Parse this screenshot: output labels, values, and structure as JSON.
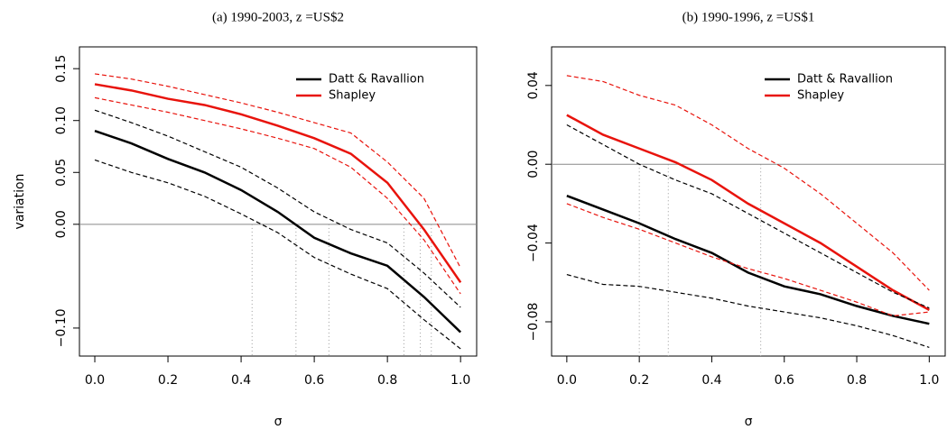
{
  "chart_data": [
    {
      "type": "line",
      "title": "(a) 1990-2003, z =US$2",
      "xlabel": "σ",
      "ylabel": "variation",
      "xlim": [
        -0.042,
        1.044
      ],
      "ylim": [
        -0.127,
        0.171
      ],
      "xticks": [
        {
          "value": 0,
          "label": "0.0"
        },
        0.2,
        0.4,
        0.6,
        0.8,
        {
          "value": 1,
          "label": "1.0"
        }
      ],
      "yticks": [
        {
          "value": -0.1,
          "label": "−0.10"
        },
        {
          "value": 0,
          "label": "0.00"
        },
        0.05,
        {
          "value": 0.1,
          "label": "0.10"
        },
        0.15
      ],
      "hline": 0,
      "vlines": [
        0.43,
        0.55,
        0.64,
        0.845,
        0.89,
        0.92
      ],
      "legend": "topright",
      "x": [
        0,
        0.1,
        0.2,
        0.3,
        0.4,
        0.5,
        0.6,
        0.7,
        0.8,
        0.9,
        1
      ],
      "series": [
        {
          "name": "Datt & Ravallion",
          "color": "#000000",
          "values": [
            0.09,
            0.078,
            0.063,
            0.05,
            0.033,
            0.012,
            -0.013,
            -0.028,
            -0.04,
            -0.07,
            -0.104
          ]
        },
        {
          "name": "Shapley",
          "color": "#e8130c",
          "values": [
            0.135,
            0.129,
            0.121,
            0.115,
            0.106,
            0.095,
            0.083,
            0.068,
            0.04,
            -0.005,
            -0.056
          ]
        },
        {
          "color": "#000000",
          "dash": true,
          "values": [
            0.11,
            0.098,
            0.085,
            0.07,
            0.055,
            0.035,
            0.012,
            -0.005,
            -0.018,
            -0.047,
            -0.08
          ]
        },
        {
          "color": "#000000",
          "dash": true,
          "values": [
            0.062,
            0.05,
            0.04,
            0.027,
            0.01,
            -0.008,
            -0.032,
            -0.048,
            -0.062,
            -0.092,
            -0.12
          ]
        },
        {
          "color": "#e8130c",
          "dash": true,
          "values": [
            0.145,
            0.14,
            0.133,
            0.125,
            0.117,
            0.108,
            0.098,
            0.088,
            0.06,
            0.025,
            -0.042
          ]
        },
        {
          "color": "#e8130c",
          "dash": true,
          "values": [
            0.122,
            0.115,
            0.108,
            0.1,
            0.092,
            0.083,
            0.073,
            0.055,
            0.025,
            -0.015,
            -0.067
          ]
        }
      ]
    },
    {
      "type": "line",
      "title": "(b) 1990-1996, z =US$1",
      "xlabel": "σ",
      "xlim": [
        -0.042,
        1.044
      ],
      "ylim": [
        -0.0974,
        0.0596
      ],
      "xticks": [
        {
          "value": 0,
          "label": "0.0"
        },
        0.2,
        0.4,
        0.6,
        0.8,
        {
          "value": 1,
          "label": "1.0"
        }
      ],
      "yticks": [
        {
          "value": -0.08,
          "label": "−0.08"
        },
        {
          "value": -0.04,
          "label": "−0.04"
        },
        {
          "value": 0,
          "label": "0.00"
        },
        0.04
      ],
      "hline": 0,
      "vlines": [
        0.2,
        0.28,
        0.535
      ],
      "legend": "topright",
      "x": [
        0,
        0.1,
        0.2,
        0.3,
        0.4,
        0.5,
        0.6,
        0.7,
        0.8,
        0.9,
        1
      ],
      "series": [
        {
          "name": "Datt & Ravallion",
          "color": "#000000",
          "values": [
            -0.016,
            -0.023,
            -0.03,
            -0.038,
            -0.045,
            -0.055,
            -0.062,
            -0.066,
            -0.072,
            -0.077,
            -0.081
          ]
        },
        {
          "name": "Shapley",
          "color": "#e8130c",
          "values": [
            0.025,
            0.015,
            0.008,
            0.001,
            -0.008,
            -0.02,
            -0.03,
            -0.04,
            -0.052,
            -0.064,
            -0.074
          ]
        },
        {
          "color": "#000000",
          "dash": true,
          "values": [
            0.02,
            0.01,
            0.0,
            -0.008,
            -0.015,
            -0.025,
            -0.035,
            -0.045,
            -0.055,
            -0.065,
            -0.073
          ]
        },
        {
          "color": "#000000",
          "dash": true,
          "values": [
            -0.056,
            -0.061,
            -0.062,
            -0.065,
            -0.068,
            -0.072,
            -0.075,
            -0.078,
            -0.082,
            -0.087,
            -0.093
          ]
        },
        {
          "color": "#e8130c",
          "dash": true,
          "values": [
            0.045,
            0.042,
            0.035,
            0.03,
            0.02,
            0.008,
            -0.002,
            -0.015,
            -0.03,
            -0.045,
            -0.064
          ]
        },
        {
          "color": "#e8130c",
          "dash": true,
          "values": [
            -0.02,
            -0.027,
            -0.033,
            -0.04,
            -0.047,
            -0.053,
            -0.058,
            -0.064,
            -0.07,
            -0.077,
            -0.075
          ]
        }
      ]
    }
  ]
}
